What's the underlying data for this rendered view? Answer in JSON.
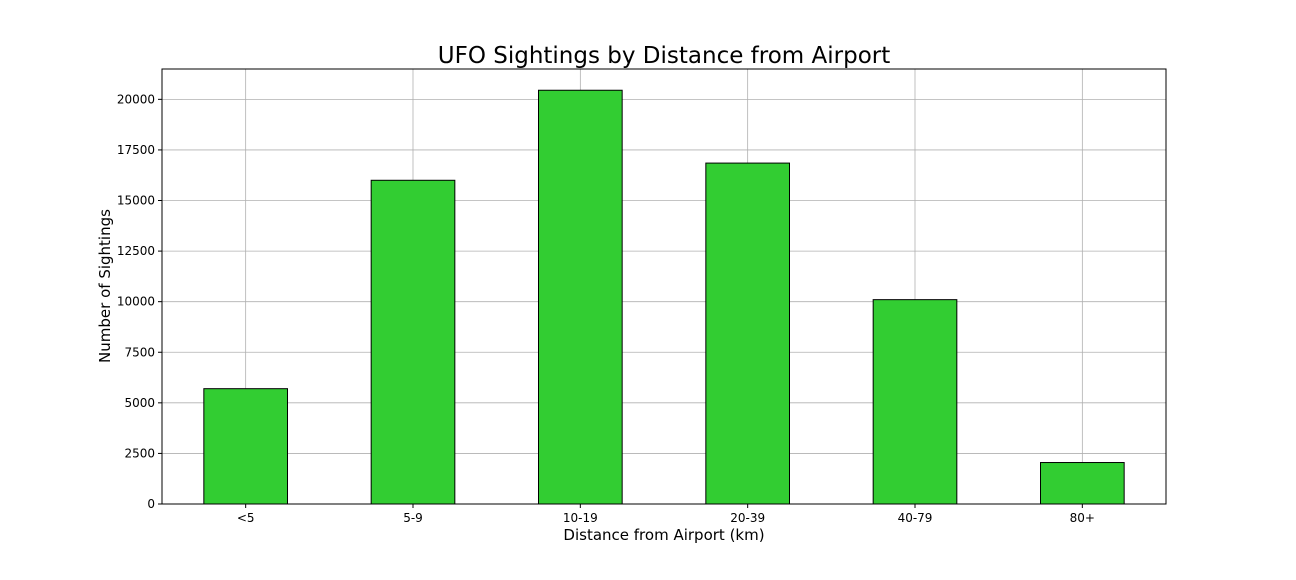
{
  "chart_data": {
    "type": "bar",
    "title": "UFO Sightings by Distance from Airport",
    "xlabel": "Distance from Airport (km)",
    "ylabel": "Number of Sightings",
    "categories": [
      "<5",
      "5-9",
      "10-19",
      "20-39",
      "40-79",
      "80+"
    ],
    "values": [
      5700,
      16000,
      20450,
      16850,
      10100,
      2050
    ],
    "ylim": [
      0,
      21500
    ],
    "yticks": [
      0,
      2500,
      5000,
      7500,
      10000,
      12500,
      15000,
      17500,
      20000
    ],
    "grid": true,
    "bar_color": "#32CD32",
    "bar_edge_color": "#000000"
  }
}
